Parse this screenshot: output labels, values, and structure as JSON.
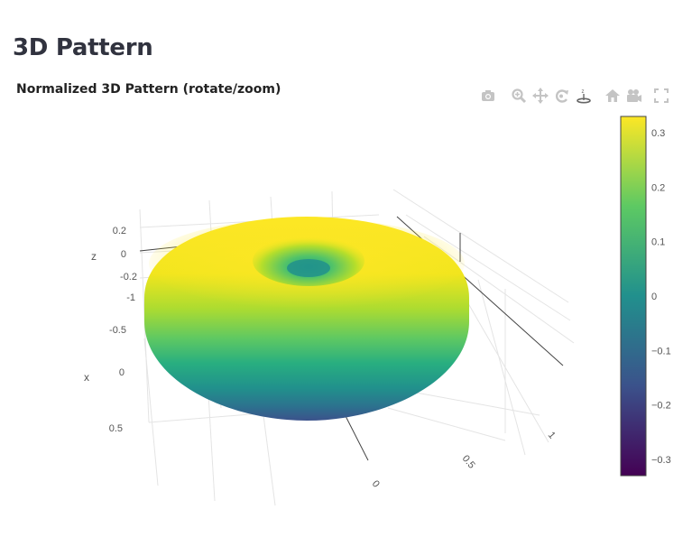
{
  "page": {
    "title": "3D Pattern"
  },
  "plot": {
    "title": "Normalized 3D Pattern (rotate/zoom)"
  },
  "modebar": {
    "buttons": [
      {
        "icon": "camera-icon"
      },
      {
        "icon": "zoom-icon"
      },
      {
        "icon": "pan-icon"
      },
      {
        "icon": "orbit-rotation-icon"
      },
      {
        "icon": "turntable-rotation-icon"
      },
      {
        "icon": "home-icon"
      },
      {
        "icon": "camera-view-icon"
      },
      {
        "icon": "fullscreen-icon"
      }
    ]
  },
  "chart_data": {
    "type": "surface",
    "shape": "torus",
    "colorscale": "Viridis",
    "colors": [
      "#440154",
      "#3b528b",
      "#21908d",
      "#5dc963",
      "#fde725"
    ],
    "axes": {
      "x": {
        "label": "x",
        "ticks": [
          "-0.5",
          "0",
          "0.5"
        ]
      },
      "y": {
        "label": "",
        "ticks": [
          "0",
          "0.5",
          "1"
        ]
      },
      "z": {
        "label": "z",
        "ticks": [
          "0.2",
          "0",
          "-0.2"
        ]
      },
      "extra_ticks": [
        "-1"
      ]
    },
    "colorbar": {
      "range": [
        -0.33,
        0.33
      ],
      "ticks": [
        {
          "label": "0.3",
          "value": 0.3
        },
        {
          "label": "0.2",
          "value": 0.2
        },
        {
          "label": "0.1",
          "value": 0.1
        },
        {
          "label": "0",
          "value": 0
        },
        {
          "label": "−0.1",
          "value": -0.1
        },
        {
          "label": "−0.2",
          "value": -0.2
        },
        {
          "label": "−0.3",
          "value": -0.3
        }
      ]
    }
  }
}
